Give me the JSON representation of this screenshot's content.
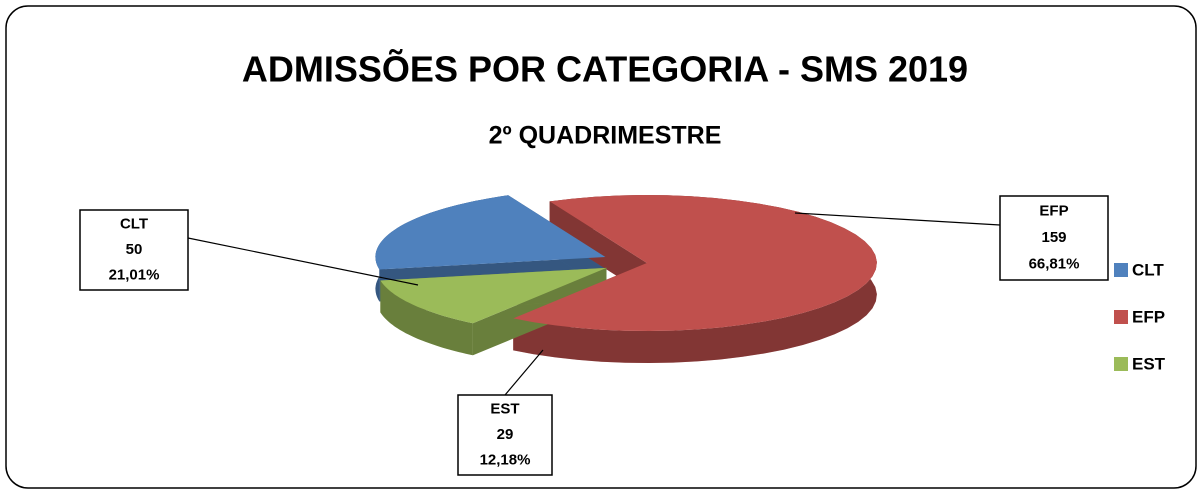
{
  "chart_data": {
    "type": "pie",
    "title": "ADMISSÕES POR CATEGORIA - SMS 2019",
    "subtitle": "2º QUADRIMESTRE",
    "categories": [
      "CLT",
      "EFP",
      "EST"
    ],
    "values": [
      50,
      159,
      29
    ],
    "percentages": [
      21.01,
      66.81,
      12.18
    ],
    "percentage_labels": [
      "21,01%",
      "66,81%",
      "12,18%"
    ],
    "colors": [
      "#4f81bd",
      "#c0504d",
      "#9bbb59"
    ],
    "legend": "right"
  }
}
